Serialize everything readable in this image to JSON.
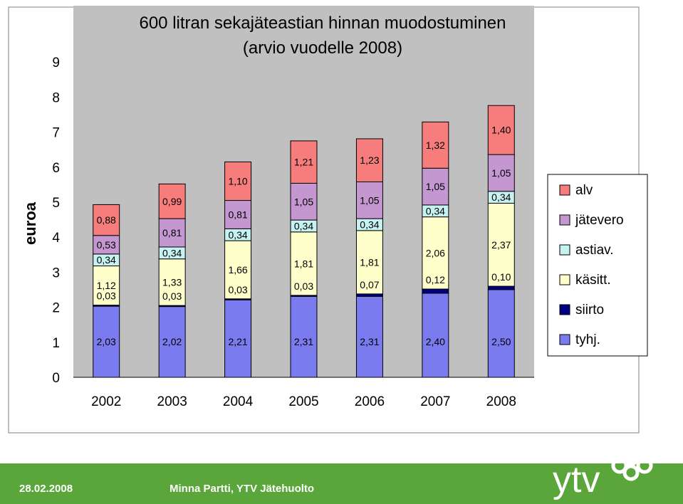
{
  "chart_data": {
    "type": "bar",
    "stacked": true,
    "title": "600 litran sekajäteastian hinnan muodostuminen",
    "subtitle": "(arvio vuodelle 2008)",
    "ylabel": "euroa",
    "xlabel": "",
    "categories": [
      "2002",
      "2003",
      "2004",
      "2005",
      "2006",
      "2007",
      "2008"
    ],
    "ylim": [
      0,
      9
    ],
    "yticks": [
      "0",
      "1",
      "2",
      "3",
      "4",
      "5",
      "6",
      "7",
      "8",
      "9"
    ],
    "grid": false,
    "legend_position": "right",
    "series": [
      {
        "name": "tyhj.",
        "color": "#7b7bf0",
        "values": [
          2.03,
          2.02,
          2.21,
          2.31,
          2.31,
          2.4,
          2.5
        ],
        "labels": [
          "2,03",
          "2,02",
          "2,21",
          "2,31",
          "2,31",
          "2,40",
          "2,50"
        ]
      },
      {
        "name": "siirto",
        "color": "#000080",
        "values": [
          0.03,
          0.03,
          0.03,
          0.03,
          0.07,
          0.12,
          0.1
        ],
        "labels": [
          "0,03",
          "0,03",
          "0,03",
          "0,03",
          "0,07",
          "0,12",
          "0,10"
        ]
      },
      {
        "name": "käsitt.",
        "color": "#ffffcc",
        "values": [
          1.12,
          1.33,
          1.66,
          1.81,
          1.81,
          2.06,
          2.37
        ],
        "labels": [
          "1,12",
          "1,33",
          "1,66",
          "1,81",
          "1,81",
          "2,06",
          "2,37"
        ]
      },
      {
        "name": "astiav.",
        "color": "#c6f2f2",
        "values": [
          0.34,
          0.34,
          0.34,
          0.34,
          0.34,
          0.34,
          0.34
        ],
        "labels": [
          "0,34",
          "0,34",
          "0,34",
          "0,34",
          "0,34",
          "0,34",
          "0,34"
        ]
      },
      {
        "name": "jätevero",
        "color": "#c497d1",
        "values": [
          0.53,
          0.81,
          0.81,
          1.05,
          1.05,
          1.05,
          1.05
        ],
        "labels": [
          "0,53",
          "0,81",
          "0,81",
          "1,05",
          "1,05",
          "1,05",
          "1,05"
        ]
      },
      {
        "name": "alv",
        "color": "#f77d7d",
        "values": [
          0.88,
          0.99,
          1.1,
          1.21,
          1.23,
          1.32,
          1.4
        ],
        "labels": [
          "0,88",
          "0,99",
          "1,10",
          "1,21",
          "1,23",
          "1,32",
          "1,40"
        ]
      }
    ],
    "legend_order": [
      "alv",
      "jätevero",
      "astiav.",
      "käsitt.",
      "siirto",
      "tyhj."
    ]
  },
  "footer": {
    "date": "28.02.2008",
    "author": "Minna Partti, YTV Jätehuolto",
    "logo_text": "ytv",
    "color": "#5aa63a"
  }
}
